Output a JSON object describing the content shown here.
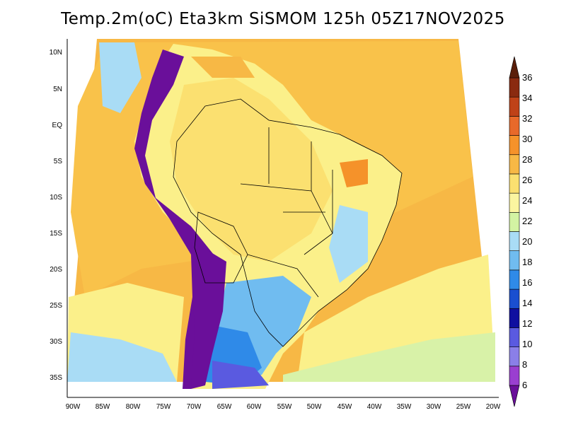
{
  "title": "Temp.2m(oC) Eta3km SiSMOM 125h 05Z17NOV2025",
  "lat_labels": [
    "10N",
    "5N",
    "EQ",
    "5S",
    "10S",
    "15S",
    "20S",
    "25S",
    "30S",
    "35S"
  ],
  "lon_labels": [
    "90W",
    "85W",
    "80W",
    "75W",
    "70W",
    "65W",
    "60W",
    "55W",
    "50W",
    "45W",
    "40W",
    "35W",
    "30W",
    "25W",
    "20W"
  ],
  "colorbar": {
    "labels": [
      "6",
      "8",
      "10",
      "12",
      "14",
      "16",
      "18",
      "20",
      "22",
      "24",
      "26",
      "28",
      "30",
      "32",
      "34",
      "36"
    ],
    "colors": [
      "#6a0f9a",
      "#9a3fd0",
      "#8a7fe8",
      "#5a5ae0",
      "#0f0fa0",
      "#1a4fd0",
      "#2f8ae8",
      "#70bcf0",
      "#a9dcf5",
      "#d3f3a3",
      "#fbf5a0",
      "#fbe070",
      "#f7b845",
      "#f5922a",
      "#e8692a",
      "#bf4218",
      "#8a2a10",
      "#5a1e0a"
    ]
  }
}
